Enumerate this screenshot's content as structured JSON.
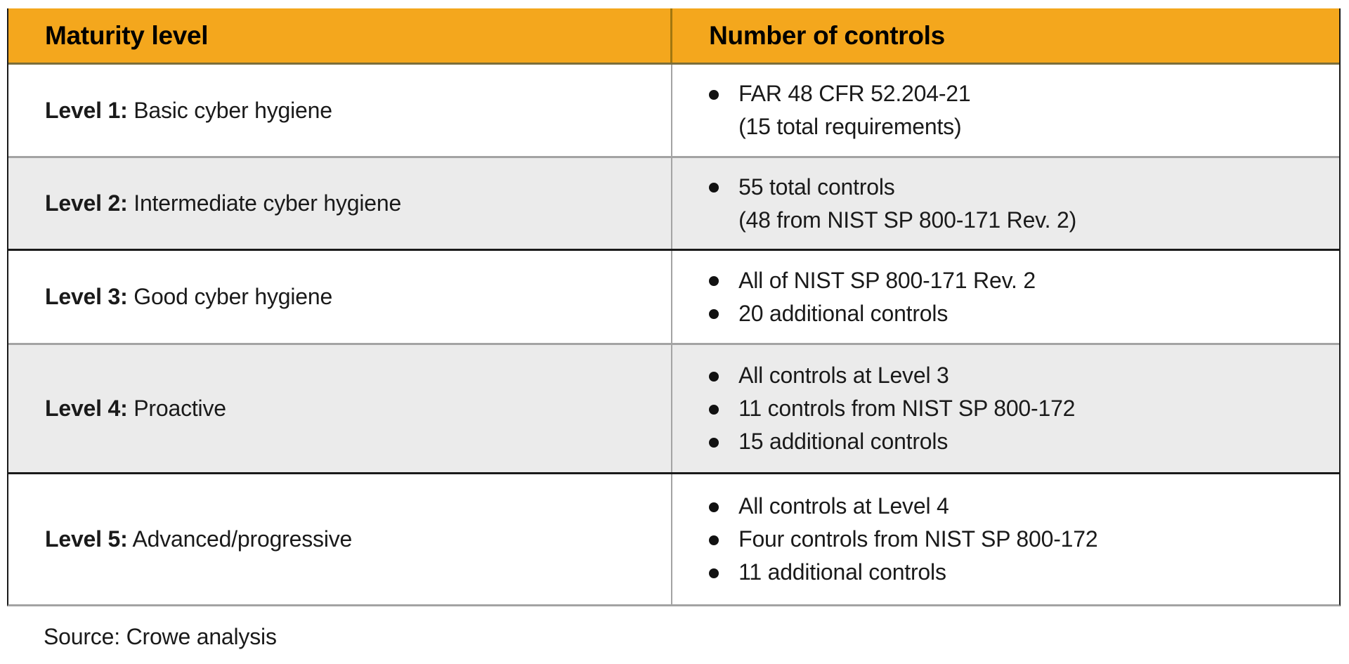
{
  "table": {
    "headers": [
      "Maturity level",
      "Number of controls"
    ],
    "rows": [
      {
        "level_label": "Level 1:",
        "level_description": " Basic cyber hygiene",
        "shaded": false,
        "controls": [
          {
            "bullet": true,
            "text": "FAR 48 CFR 52.204-21"
          },
          {
            "bullet": false,
            "text": "(15 total requirements)"
          }
        ]
      },
      {
        "level_label": "Level 2:",
        "level_description": " Intermediate cyber hygiene",
        "shaded": true,
        "controls": [
          {
            "bullet": true,
            "text": "55 total controls"
          },
          {
            "bullet": false,
            "text": "(48 from NIST SP 800-171 Rev. 2)"
          }
        ]
      },
      {
        "level_label": "Level 3:",
        "level_description": " Good cyber hygiene",
        "shaded": false,
        "controls": [
          {
            "bullet": true,
            "text": "All of NIST SP 800-171 Rev. 2"
          },
          {
            "bullet": true,
            "text": "20 additional controls"
          }
        ]
      },
      {
        "level_label": "Level 4:",
        "level_description": " Proactive",
        "shaded": true,
        "controls": [
          {
            "bullet": true,
            "text": "All controls at Level 3"
          },
          {
            "bullet": true,
            "text": "11 controls from NIST SP 800-172"
          },
          {
            "bullet": true,
            "text": "15 additional controls"
          }
        ]
      },
      {
        "level_label": "Level 5:",
        "level_description": " Advanced/progressive",
        "shaded": false,
        "controls": [
          {
            "bullet": true,
            "text": "All controls at Level 4"
          },
          {
            "bullet": true,
            "text": "Four controls from NIST SP 800-172"
          },
          {
            "bullet": true,
            "text": "11 additional controls"
          }
        ]
      }
    ]
  },
  "source_note": "Source: Crowe analysis",
  "colors": {
    "header_bg": "#F4A71D",
    "row_shaded_bg": "#EBEBEB",
    "row_plain_bg": "#FFFFFF",
    "text": "#1A1A1A",
    "border_dark": "#1A1A1A",
    "border_gray": "#A3A3A3",
    "header_divider": "#A1770F",
    "header_bottom_border": "#7C6E3A"
  }
}
